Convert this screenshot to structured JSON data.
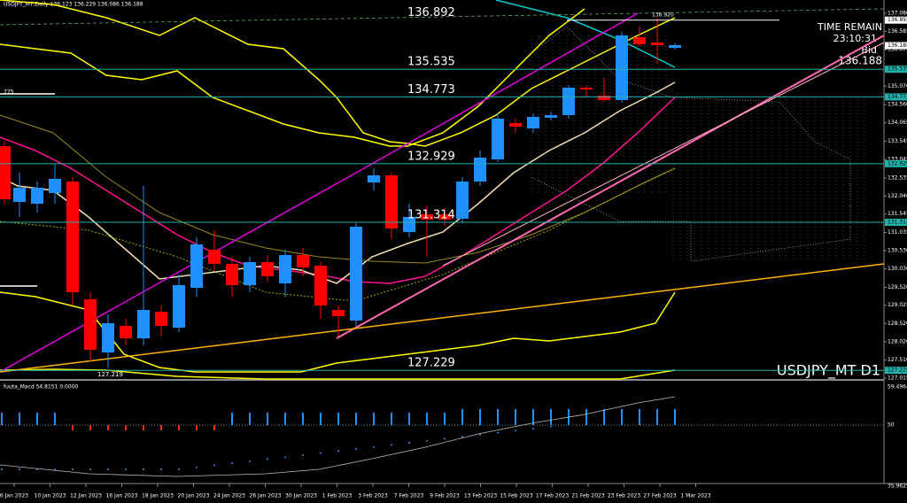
{
  "header": "USDJPY_MT,Daily  136.123 136.229 136.086 136.188",
  "price_axis": [
    "137.080",
    "136.585",
    "136.075",
    "135.070",
    "134.560",
    "134.065",
    "133.545",
    "133.045",
    "132.535",
    "132.040",
    "131.545",
    "131.035",
    "130.530",
    "130.030",
    "129.520",
    "129.025",
    "128.520",
    "128.020",
    "127.510",
    "127.015"
  ],
  "price_tags": [
    {
      "label": "136.892",
      "kind": "white"
    },
    {
      "label": "136.188",
      "kind": "white"
    },
    {
      "label": "135.535",
      "kind": "cyan"
    },
    {
      "label": "134.773",
      "kind": "cyan"
    },
    {
      "label": "132.929",
      "kind": "cyan"
    },
    {
      "label": "131.314",
      "kind": "cyan"
    },
    {
      "label": "127.229",
      "kind": "cyan"
    }
  ],
  "levels": [
    "136.892",
    "135.535",
    "134.773",
    "132.929",
    "131.314",
    "127.229"
  ],
  "notes": {
    "high": "136.920",
    "low": "127.219",
    "left": "775"
  },
  "info": {
    "time_remain": "TIME REMAIN",
    "countdown": "23:10:31",
    "bid_label": "Bid",
    "bid": "136.188"
  },
  "symbol": "USDJPY_MT D1",
  "indicator": {
    "title": "fuuta_Macd 54.8151  0.0000",
    "scale": [
      "59.4964",
      "50",
      "35.9625"
    ]
  },
  "dates": [
    "6 Jan 2023",
    "10 Jan 2023",
    "12 Jan 2023",
    "16 Jan 2023",
    "18 Jan 2023",
    "20 Jan 2023",
    "24 Jan 2023",
    "26 Jan 2023",
    "30 Jan 2023",
    "1 Feb 2023",
    "3 Feb 2023",
    "7 Feb 2023",
    "9 Feb 2023",
    "13 Feb 2023",
    "15 Feb 2023",
    "17 Feb 2023",
    "21 Feb 2023",
    "23 Feb 2023",
    "27 Feb 2023",
    "1 Mar 2023"
  ]
}
